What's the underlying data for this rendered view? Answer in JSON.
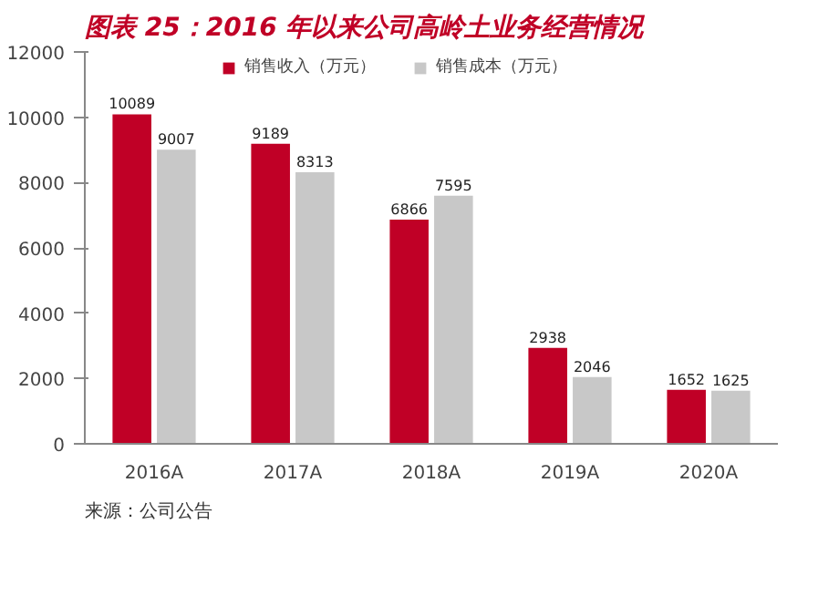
{
  "chart_data": {
    "type": "bar",
    "title": "图表 25：2016 年以来公司高岭土业务经营情况",
    "categories": [
      "2016A",
      "2017A",
      "2018A",
      "2019A",
      "2020A"
    ],
    "series": [
      {
        "name": "销售收入（万元）",
        "color": "#c00026",
        "values": [
          10089,
          9189,
          6866,
          2938,
          1652
        ]
      },
      {
        "name": "销售成本（万元）",
        "color": "#c8c8c8",
        "values": [
          9007,
          8313,
          7595,
          2046,
          1625
        ]
      }
    ],
    "ylim": [
      0,
      12000
    ],
    "yticks": [
      0,
      2000,
      4000,
      6000,
      8000,
      10000,
      12000
    ],
    "data_labels": true,
    "grid": false,
    "legend": "top",
    "annotations": [
      "来源：公司公告"
    ]
  }
}
